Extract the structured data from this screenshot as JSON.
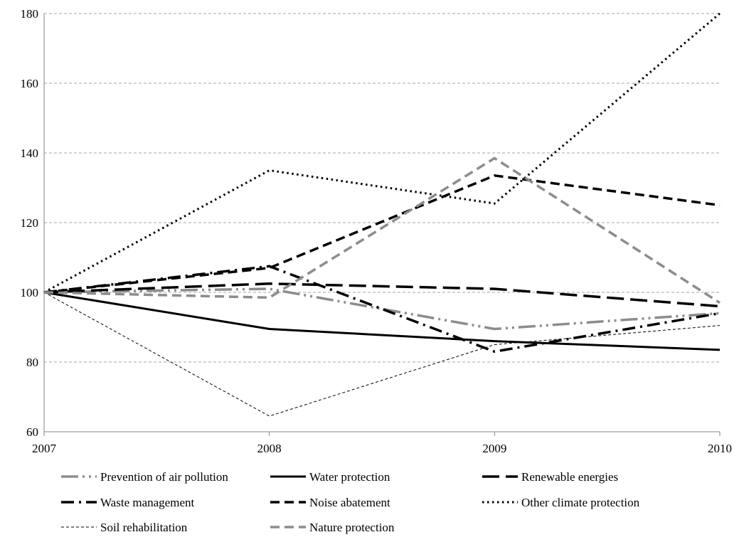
{
  "chart_data": {
    "type": "line",
    "title": "",
    "xlabel": "",
    "ylabel": "",
    "categories": [
      "2007",
      "2008",
      "2009",
      "2010"
    ],
    "ylim": [
      60,
      180
    ],
    "yticks": [
      60,
      80,
      100,
      120,
      140,
      160,
      180
    ],
    "grid": "horizontal-dashed",
    "legend_position": "bottom",
    "series": [
      {
        "name": "Prevention of air pollution",
        "values": [
          100,
          101,
          89.5,
          94
        ],
        "color": "#8c8c8c",
        "style": "dash-dot-dot"
      },
      {
        "name": "Water protection",
        "values": [
          100,
          89.5,
          86,
          83.5
        ],
        "color": "#000000",
        "style": "solid"
      },
      {
        "name": "Renewable energies",
        "values": [
          100,
          102.5,
          101,
          96
        ],
        "color": "#000000",
        "style": "long-dash"
      },
      {
        "name": "Waste management",
        "values": [
          100,
          107.5,
          83,
          94
        ],
        "color": "#000000",
        "style": "dash-dot"
      },
      {
        "name": "Noise abatement",
        "values": [
          100,
          107,
          133.5,
          125
        ],
        "color": "#000000",
        "style": "dash"
      },
      {
        "name": "Other climate protection",
        "values": [
          100,
          135,
          125.5,
          180
        ],
        "color": "#000000",
        "style": "dot"
      },
      {
        "name": "Soil rehabilitation",
        "values": [
          100,
          64.5,
          85,
          90.5
        ],
        "color": "#000000",
        "style": "thin-dash"
      },
      {
        "name": "Nature protection",
        "values": [
          100,
          98.5,
          138.5,
          97
        ],
        "color": "#8c8c8c",
        "style": "dash"
      }
    ]
  }
}
